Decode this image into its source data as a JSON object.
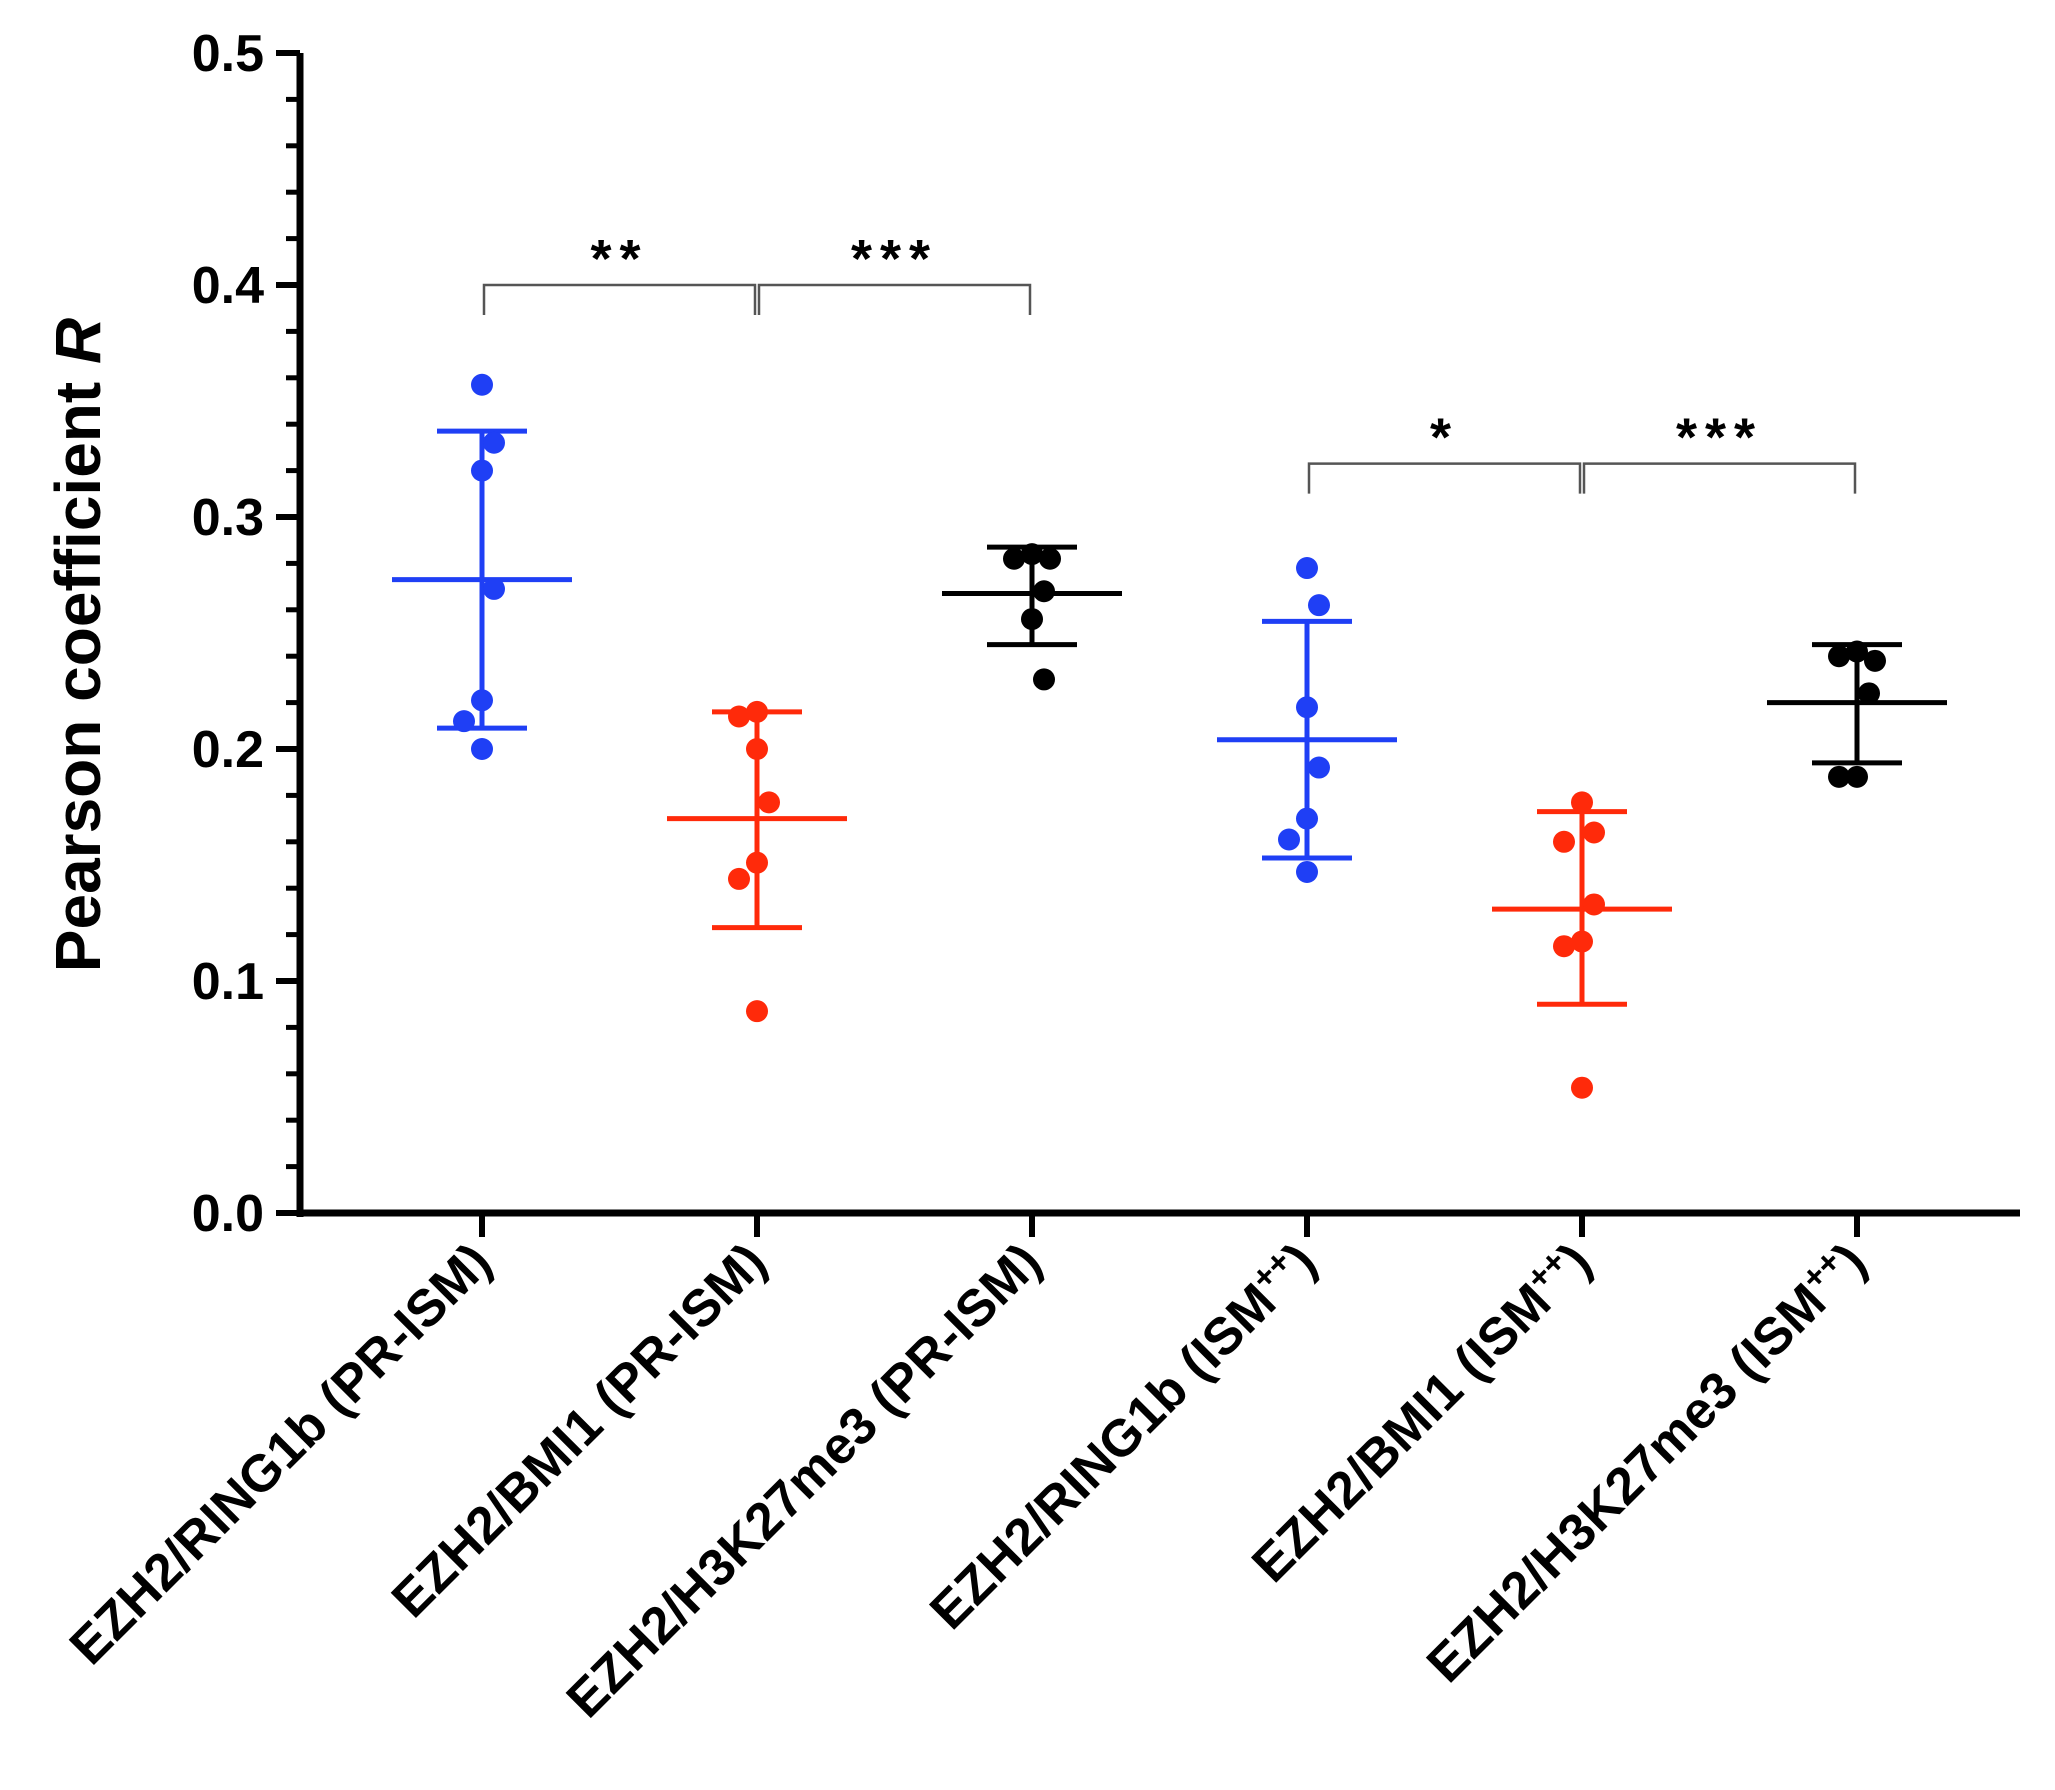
{
  "chart_data": {
    "type": "scatter",
    "ylabel_main": "Pearson coefficient",
    "ylabel_var": "R",
    "ylim": [
      0.0,
      0.5
    ],
    "yticks": [
      "0.0",
      "0.1",
      "0.2",
      "0.3",
      "0.4",
      "0.5"
    ],
    "categories": [
      {
        "prefix": "EZH2/RING1b (PR-ISM)",
        "sup": "",
        "suffix": ""
      },
      {
        "prefix": "EZH2/BMI1 (PR-ISM)",
        "sup": "",
        "suffix": ""
      },
      {
        "prefix": "EZH2/H3K27me3 (PR-ISM)",
        "sup": "",
        "suffix": ""
      },
      {
        "prefix": "EZH2/RING1b (ISM",
        "sup": "++",
        "suffix": ")"
      },
      {
        "prefix": "EZH2/BMI1 (ISM",
        "sup": "++",
        "suffix": ")"
      },
      {
        "prefix": "EZH2/H3K27me3 (ISM",
        "sup": "++",
        "suffix": ")"
      }
    ],
    "series": [
      {
        "name": "EZH2/RING1b (PR-ISM)",
        "color": "#1f3ff5",
        "points": [
          0.357,
          0.332,
          0.32,
          0.269,
          0.221,
          0.212,
          0.2
        ],
        "mean": 0.273,
        "sd_low": 0.209,
        "sd_high": 0.337
      },
      {
        "name": "EZH2/BMI1 (PR-ISM)",
        "color": "#ff2a0a",
        "points": [
          0.216,
          0.214,
          0.2,
          0.177,
          0.151,
          0.144,
          0.087
        ],
        "mean": 0.17,
        "sd_low": 0.123,
        "sd_high": 0.216
      },
      {
        "name": "EZH2/H3K27me3 (PR-ISM)",
        "color": "#000000",
        "points": [
          0.284,
          0.282,
          0.282,
          0.268,
          0.256,
          0.23
        ],
        "mean": 0.267,
        "sd_low": 0.245,
        "sd_high": 0.287
      },
      {
        "name": "EZH2/RING1b (ISM++)",
        "color": "#1f3ff5",
        "points": [
          0.278,
          0.262,
          0.218,
          0.192,
          0.17,
          0.161,
          0.147
        ],
        "mean": 0.204,
        "sd_low": 0.153,
        "sd_high": 0.255
      },
      {
        "name": "EZH2/BMI1 (ISM++)",
        "color": "#ff2a0a",
        "points": [
          0.177,
          0.164,
          0.16,
          0.133,
          0.117,
          0.115,
          0.054
        ],
        "mean": 0.131,
        "sd_low": 0.09,
        "sd_high": 0.173
      },
      {
        "name": "EZH2/H3K27me3 (ISM++)",
        "color": "#000000",
        "points": [
          0.242,
          0.24,
          0.238,
          0.224,
          0.188,
          0.188
        ],
        "mean": 0.22,
        "sd_low": 0.194,
        "sd_high": 0.245
      }
    ],
    "significance": [
      {
        "from": 0,
        "to": 1,
        "y": 0.4,
        "label": "**"
      },
      {
        "from": 1,
        "to": 2,
        "y": 0.4,
        "label": "***"
      },
      {
        "from": 3,
        "to": 4,
        "y": 0.323,
        "label": "*"
      },
      {
        "from": 4,
        "to": 5,
        "y": 0.323,
        "label": "***"
      }
    ]
  }
}
